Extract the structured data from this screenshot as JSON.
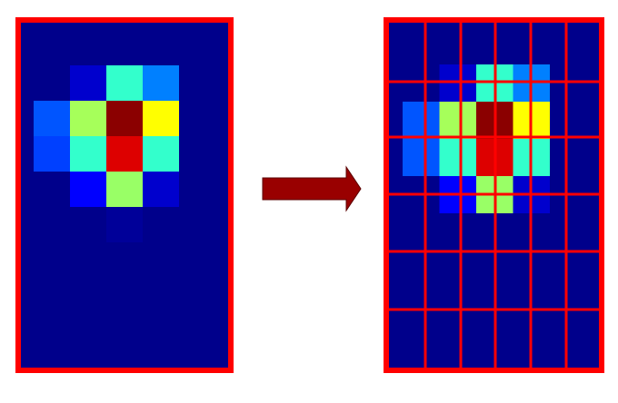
{
  "palette": {
    "background": "#00008B",
    "border": "#FF0000",
    "arrow": "#990000",
    "arrow_outline": "#5A0000"
  },
  "coarse_grid": {
    "rows": 11,
    "cols": 6,
    "cells": [
      {
        "row": 1,
        "col": 1,
        "color": "#0000CD"
      },
      {
        "row": 1,
        "col": 2,
        "color": "#33FFCC"
      },
      {
        "row": 1,
        "col": 3,
        "color": "#0080FF"
      },
      {
        "row": 2,
        "col": 0,
        "color": "#0055FF"
      },
      {
        "row": 2,
        "col": 1,
        "color": "#A6FF5A"
      },
      {
        "row": 2,
        "col": 2,
        "color": "#8B0000"
      },
      {
        "row": 2,
        "col": 3,
        "color": "#FFFF00"
      },
      {
        "row": 3,
        "col": 0,
        "color": "#0040FF"
      },
      {
        "row": 3,
        "col": 1,
        "color": "#33FFCC"
      },
      {
        "row": 3,
        "col": 2,
        "color": "#DD0000"
      },
      {
        "row": 3,
        "col": 3,
        "color": "#33FFCC"
      },
      {
        "row": 4,
        "col": 1,
        "color": "#0000FF"
      },
      {
        "row": 4,
        "col": 2,
        "color": "#99FF66"
      },
      {
        "row": 4,
        "col": 3,
        "color": "#0000CD"
      },
      {
        "row": 5,
        "col": 2,
        "color": "#000099"
      }
    ]
  },
  "fine_grid": {
    "rows": 6,
    "cols": 6,
    "cells": [
      {
        "row": 1,
        "col": 1,
        "w": 1,
        "h": 2,
        "color": "#0000CD"
      },
      {
        "row": 1,
        "col": 2,
        "w": 1,
        "h": 2,
        "color": "#33FFCC"
      },
      {
        "row": 1,
        "col": 3,
        "w": 1,
        "h": 2,
        "color": "#0080FF"
      },
      {
        "row": 2,
        "col": 0,
        "w": 1,
        "h": 3,
        "color": "#0055FF"
      },
      {
        "row": 2,
        "col": 1,
        "w": 1,
        "h": 3,
        "color": "#A6FF5A"
      },
      {
        "row": 2,
        "col": 2,
        "w": 1,
        "h": 3,
        "color": "#8B0000"
      },
      {
        "row": 2,
        "col": 3,
        "w": 1,
        "h": 3,
        "color": "#FFFF00"
      },
      {
        "row": 3,
        "col": 0,
        "w": 1,
        "h": 3,
        "color": "#0040FF"
      },
      {
        "row": 3,
        "col": 1,
        "w": 1,
        "h": 3,
        "color": "#33FFCC"
      },
      {
        "row": 3,
        "col": 2,
        "w": 1,
        "h": 3,
        "color": "#DD0000"
      },
      {
        "row": 3,
        "col": 3,
        "w": 1,
        "h": 3,
        "color": "#33FFCC"
      },
      {
        "row": 4,
        "col": 1,
        "w": 1,
        "h": 2,
        "color": "#0000FF"
      },
      {
        "row": 4,
        "col": 2,
        "w": 1,
        "h": 2,
        "color": "#99FF66"
      },
      {
        "row": 4,
        "col": 3,
        "w": 1,
        "h": 2,
        "color": "#0000CD"
      }
    ]
  }
}
